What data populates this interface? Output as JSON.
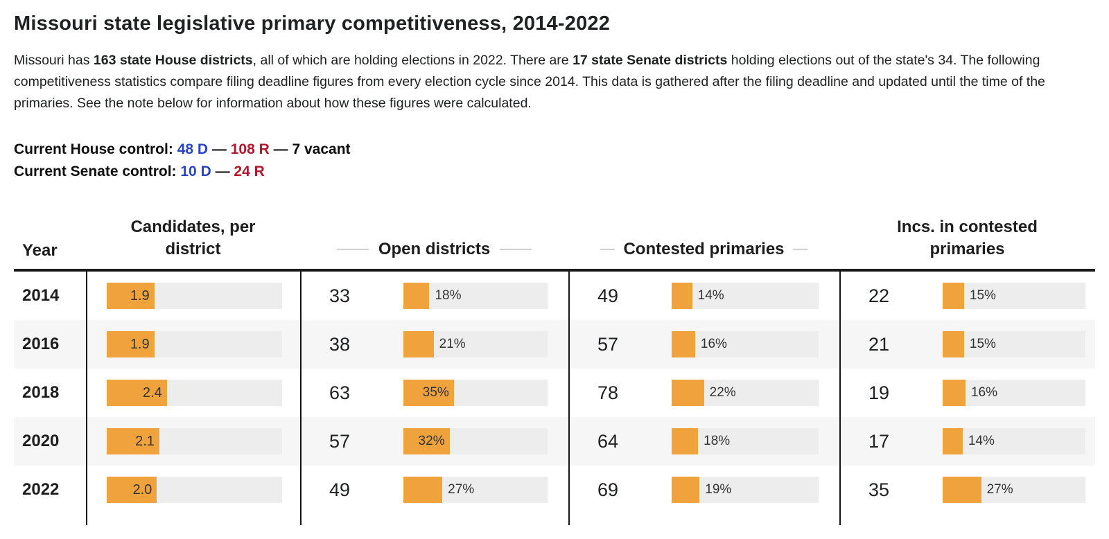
{
  "page": {
    "title": "Missouri state legislative primary competitiveness, 2014-2022",
    "intro": [
      {
        "text": "Missouri has "
      },
      {
        "text": "163 state House districts"
      },
      {
        "text": ", all of which are holding elections in 2022. There are "
      },
      {
        "text": "17 state Senate districts"
      },
      {
        "text": " holding elections out of the state's 34. The following competitiveness statistics compare filing deadline figures from every election cycle since 2014. This data is gathered after the filing deadline and updated until the time of the primaries. See the note below for information about how these figures were calculated."
      }
    ],
    "control": {
      "house": {
        "label": "Current House control:",
        "dem": "48 D",
        "sep1": "—",
        "rep": "108 R",
        "sep2": "—",
        "vacant": "7 vacant"
      },
      "senate": {
        "label": "Current Senate control:",
        "dem": "10 D",
        "sep1": "—",
        "rep": "24 R"
      }
    },
    "colors": {
      "bar_orange": "#F0A33C",
      "bar_track": "#EDEDED",
      "row_stripe": "#F6F6F6",
      "dem_blue": "#2A45C4",
      "rep_red": "#B1182D",
      "text": "#202122"
    }
  },
  "chart_data": {
    "type": "table",
    "title": "Missouri state legislative primary competitiveness, 2014-2022",
    "legend_position": "none",
    "grid": false,
    "columns": [
      {
        "key": "year",
        "label": "Year"
      },
      {
        "key": "candidates",
        "label": "Candidates, per district",
        "bar_scale_max": 7
      },
      {
        "key": "open",
        "label": "Open districts",
        "bar_scale_max": 100
      },
      {
        "key": "contested",
        "label": "Contested primaries",
        "bar_scale_max": 100
      },
      {
        "key": "incs",
        "label": "Incs. in contested primaries",
        "bar_scale_max": 100
      }
    ],
    "rows": [
      {
        "year": "2014",
        "candidates": {
          "value": 1.9,
          "label": "1.9"
        },
        "open": {
          "count": "33",
          "pct": 18,
          "label": "18%"
        },
        "contested": {
          "count": "49",
          "pct": 14,
          "label": "14%"
        },
        "incs": {
          "count": "22",
          "pct": 15,
          "label": "15%"
        }
      },
      {
        "year": "2016",
        "candidates": {
          "value": 1.9,
          "label": "1.9"
        },
        "open": {
          "count": "38",
          "pct": 21,
          "label": "21%"
        },
        "contested": {
          "count": "57",
          "pct": 16,
          "label": "16%"
        },
        "incs": {
          "count": "21",
          "pct": 15,
          "label": "15%"
        }
      },
      {
        "year": "2018",
        "candidates": {
          "value": 2.4,
          "label": "2.4"
        },
        "open": {
          "count": "63",
          "pct": 35,
          "label": "35%"
        },
        "contested": {
          "count": "78",
          "pct": 22,
          "label": "22%"
        },
        "incs": {
          "count": "19",
          "pct": 16,
          "label": "16%"
        }
      },
      {
        "year": "2020",
        "candidates": {
          "value": 2.1,
          "label": "2.1"
        },
        "open": {
          "count": "57",
          "pct": 32,
          "label": "32%"
        },
        "contested": {
          "count": "64",
          "pct": 18,
          "label": "18%"
        },
        "incs": {
          "count": "17",
          "pct": 14,
          "label": "14%"
        }
      },
      {
        "year": "2022",
        "candidates": {
          "value": 2.0,
          "label": "2.0"
        },
        "open": {
          "count": "49",
          "pct": 27,
          "label": "27%"
        },
        "contested": {
          "count": "69",
          "pct": 19,
          "label": "19%"
        },
        "incs": {
          "count": "35",
          "pct": 27,
          "label": "27%"
        }
      }
    ]
  }
}
